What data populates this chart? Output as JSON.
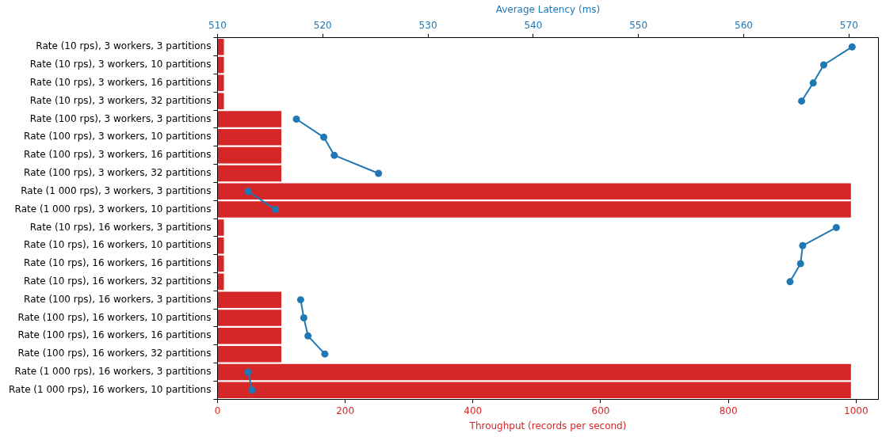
{
  "chart_data": {
    "type": "bar",
    "orientation": "horizontal",
    "xlabel": "Throughput (records per second)",
    "x2label": "Average Latency (ms)",
    "categories": [
      "Rate (10 rps), 3 workers, 3 partitions",
      "Rate (10 rps), 3 workers, 10 partitions",
      "Rate (10 rps), 3 workers, 16 partitions",
      "Rate (10 rps), 3 workers, 32 partitions",
      "Rate (100 rps), 3 workers, 3 partitions",
      "Rate (100 rps), 3 workers, 10 partitions",
      "Rate (100 rps), 3 workers, 16 partitions",
      "Rate (100 rps), 3 workers, 32 partitions",
      "Rate (1 000 rps), 3 workers, 3 partitions",
      "Rate (1 000 rps), 3 workers, 10 partitions",
      "Rate (10 rps), 16 workers, 3 partitions",
      "Rate (10 rps), 16 workers, 10 partitions",
      "Rate (10 rps), 16 workers, 16 partitions",
      "Rate (10 rps), 16 workers, 32 partitions",
      "Rate (100 rps), 16 workers, 3 partitions",
      "Rate (100 rps), 16 workers, 10 partitions",
      "Rate (100 rps), 16 workers, 16 partitions",
      "Rate (100 rps), 16 workers, 32 partitions",
      "Rate (1 000 rps), 16 workers, 3 partitions",
      "Rate (1 000 rps), 16 workers, 10 partitions"
    ],
    "series": [
      {
        "color": "#d62728",
        "values": [
          10,
          10,
          10,
          10,
          100,
          100,
          100,
          100,
          992,
          992,
          10,
          10,
          10,
          10,
          100,
          100,
          100,
          100,
          992,
          992
        ]
      },
      {
        "type": "line",
        "axis": "x2",
        "color": "#1f77b4",
        "values": [
          570.3,
          567.6,
          566.6,
          565.5,
          null,
          null,
          null,
          null,
          null,
          null,
          null,
          null,
          null,
          null,
          null,
          null,
          null,
          null,
          null,
          null
        ]
      },
      {
        "type": "line",
        "axis": "x2",
        "color": "#1f77b4",
        "values": [
          null,
          null,
          null,
          null,
          517.5,
          520.1,
          521.1,
          525.3,
          null,
          null,
          null,
          null,
          null,
          null,
          null,
          null,
          null,
          null,
          null,
          null
        ]
      },
      {
        "type": "line",
        "axis": "x2",
        "color": "#1f77b4",
        "values": [
          null,
          null,
          null,
          null,
          null,
          null,
          null,
          null,
          512.9,
          515.5,
          null,
          null,
          null,
          null,
          null,
          null,
          null,
          null,
          null,
          null
        ]
      },
      {
        "type": "line",
        "axis": "x2",
        "color": "#1f77b4",
        "values": [
          null,
          null,
          null,
          null,
          null,
          null,
          null,
          null,
          null,
          null,
          568.8,
          565.6,
          565.4,
          564.4,
          null,
          null,
          null,
          null,
          null,
          null
        ]
      },
      {
        "type": "line",
        "axis": "x2",
        "color": "#1f77b4",
        "values": [
          null,
          null,
          null,
          null,
          null,
          null,
          null,
          null,
          null,
          null,
          null,
          null,
          null,
          null,
          517.9,
          518.2,
          518.6,
          520.2,
          null,
          null
        ]
      },
      {
        "type": "line",
        "axis": "x2",
        "color": "#1f77b4",
        "values": [
          null,
          null,
          null,
          null,
          null,
          null,
          null,
          null,
          null,
          null,
          null,
          null,
          null,
          null,
          null,
          null,
          null,
          null,
          512.9,
          513.3
        ]
      }
    ],
    "xlim": [
      0,
      1035
    ],
    "xticks": [
      0,
      200,
      400,
      600,
      800,
      1000
    ],
    "x2lim": [
      510,
      572.8
    ],
    "x2ticks": [
      510,
      520,
      530,
      540,
      550,
      560,
      570
    ],
    "grid": false,
    "legend": false,
    "marker": "circle",
    "line_style": "solid"
  }
}
